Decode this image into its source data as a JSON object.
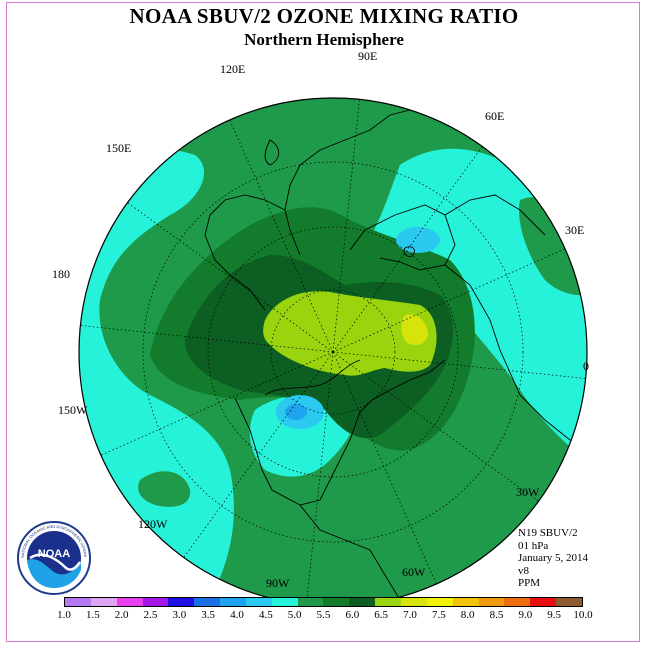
{
  "title": "NOAA SBUV/2 OZONE MIXING RATIO",
  "subtitle": "Northern Hemisphere",
  "info": {
    "satellite": "N19 SBUV/2",
    "level": "01 hPa",
    "date": "January 5, 2014",
    "version": "v8",
    "units": "PPM"
  },
  "longitude_labels": [
    "90E",
    "60E",
    "30E",
    "0",
    "30W",
    "60W",
    "90W",
    "120W",
    "150W",
    "180",
    "150E",
    "120E"
  ],
  "colorbar": {
    "ticks": [
      "1.0",
      "1.5",
      "2.0",
      "2.5",
      "3.0",
      "3.5",
      "4.0",
      "4.5",
      "5.0",
      "5.5",
      "6.0",
      "6.5",
      "7.0",
      "7.5",
      "8.0",
      "8.5",
      "9.0",
      "9.5",
      "10.0"
    ],
    "colors": [
      "#b57aef",
      "#dca6f4",
      "#e93ff0",
      "#a318e8",
      "#1f10e8",
      "#1a6ee6",
      "#1ea3ef",
      "#2bc8f0",
      "#26f2d9",
      "#1e9a4a",
      "#127c2c",
      "#0d5e22",
      "#9ad40f",
      "#d6e40c",
      "#f3f107",
      "#f2c20a",
      "#ef9a0c",
      "#ee6e0f",
      "#e70f0f",
      "#8e5a2f"
    ]
  },
  "logo": {
    "name": "NOAA",
    "ring_text": "NATIONAL OCEANIC AND ATMOSPHERIC ADMINISTRATION · U.S. DEPARTMENT OF COMMERCE"
  }
}
